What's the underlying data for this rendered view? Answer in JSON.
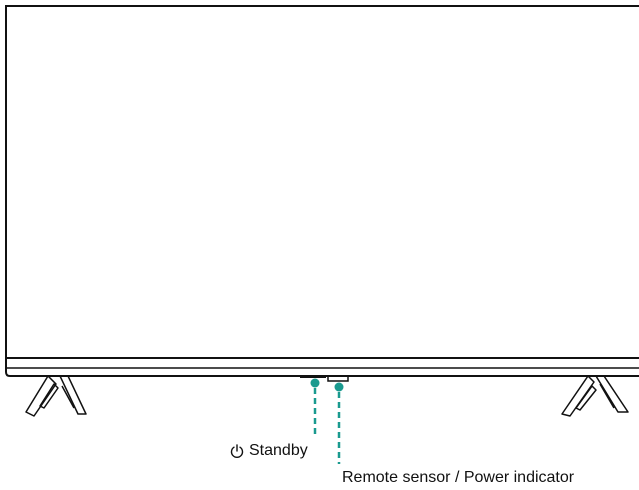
{
  "labels": {
    "standby": "Standby",
    "remote_sensor": "Remote sensor / Power indicator"
  },
  "icons": {
    "standby_icon": "power-icon"
  },
  "colors": {
    "outline": "#111111",
    "callout": "#1a9a8f",
    "background": "#ffffff"
  }
}
